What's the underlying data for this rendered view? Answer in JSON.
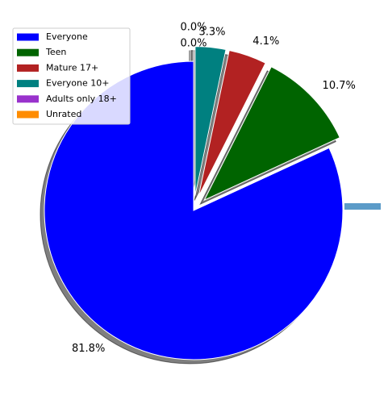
{
  "chart_data": {
    "type": "pie",
    "title": "",
    "categories": [
      "Everyone",
      "Teen",
      "Mature 17+",
      "Everyone 10+",
      "Adults only 18+",
      "Unrated"
    ],
    "values": [
      81.8,
      10.7,
      4.1,
      3.3,
      0.0,
      0.0
    ],
    "labels": [
      "81.8%",
      "10.7%",
      "4.1%",
      "3.3%",
      "0.0%",
      "0.0%"
    ],
    "colors": [
      "#0000ff",
      "#006400",
      "#b22222",
      "#008080",
      "#9932cc",
      "#ff8c00"
    ],
    "explode": [
      0,
      0.1,
      0.1,
      0.1,
      0.1,
      0.1
    ],
    "shadow": true,
    "start_angle_deg": 90,
    "direction": "counterclockwise",
    "legend_position": "upper-left"
  }
}
